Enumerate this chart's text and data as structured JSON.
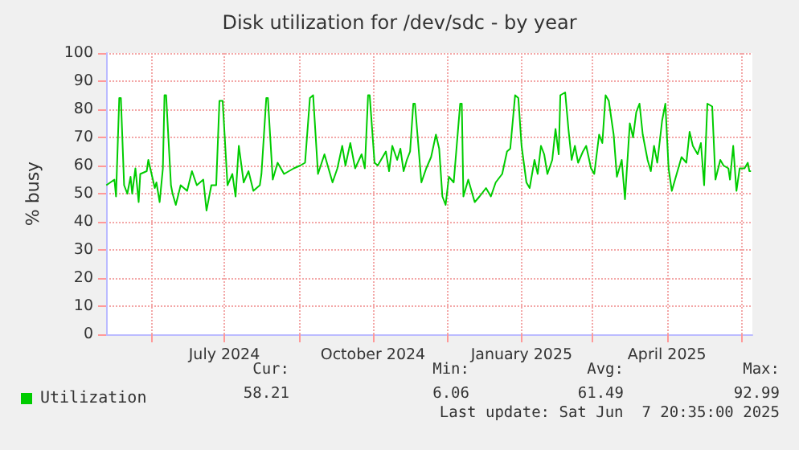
{
  "chart_data": {
    "type": "line",
    "title": "Disk utilization for /dev/sdc - by year",
    "ylabel": "% busy",
    "x": [
      "2024-05-04",
      "2024-05-09",
      "2024-05-10",
      "2024-05-12",
      "2024-05-13",
      "2024-05-15",
      "2024-05-17",
      "2024-05-19",
      "2024-05-20",
      "2024-05-22",
      "2024-05-24",
      "2024-05-25",
      "2024-05-29",
      "2024-05-30",
      "2024-06-03",
      "2024-06-04",
      "2024-06-06",
      "2024-06-08",
      "2024-06-09",
      "2024-06-10",
      "2024-06-13",
      "2024-06-14",
      "2024-06-16",
      "2024-06-19",
      "2024-06-23",
      "2024-06-26",
      "2024-06-29",
      "2024-07-03",
      "2024-07-05",
      "2024-07-08",
      "2024-07-11",
      "2024-07-13",
      "2024-07-15",
      "2024-07-18",
      "2024-07-21",
      "2024-07-23",
      "2024-07-25",
      "2024-07-28",
      "2024-07-31",
      "2024-08-03",
      "2024-08-07",
      "2024-08-08",
      "2024-08-11",
      "2024-08-12",
      "2024-08-15",
      "2024-08-18",
      "2024-08-22",
      "2024-08-25",
      "2024-08-28",
      "2024-09-01",
      "2024-09-04",
      "2024-09-07",
      "2024-09-09",
      "2024-09-12",
      "2024-09-16",
      "2024-09-21",
      "2024-09-24",
      "2024-09-27",
      "2024-09-29",
      "2024-10-02",
      "2024-10-05",
      "2024-10-09",
      "2024-10-11",
      "2024-10-13",
      "2024-10-14",
      "2024-10-17",
      "2024-10-19",
      "2024-10-24",
      "2024-10-26",
      "2024-10-28",
      "2024-10-31",
      "2024-11-02",
      "2024-11-04",
      "2024-11-06",
      "2024-11-08",
      "2024-11-10",
      "2024-11-11",
      "2024-11-13",
      "2024-11-15",
      "2024-11-18",
      "2024-11-21",
      "2024-11-24",
      "2024-11-26",
      "2024-11-28",
      "2024-11-30",
      "2024-12-02",
      "2024-12-05",
      "2024-12-09",
      "2024-12-10",
      "2024-12-11",
      "2024-12-14",
      "2024-12-16",
      "2024-12-18",
      "2024-12-21",
      "2024-12-25",
      "2024-12-28",
      "2024-12-31",
      "2025-01-04",
      "2025-01-07",
      "2025-01-09",
      "2025-01-12",
      "2025-01-14",
      "2025-01-16",
      "2025-01-19",
      "2025-01-21",
      "2025-01-24",
      "2025-01-26",
      "2025-01-28",
      "2025-01-30",
      "2025-02-01",
      "2025-02-04",
      "2025-02-06",
      "2025-02-08",
      "2025-02-09",
      "2025-02-12",
      "2025-02-14",
      "2025-02-16",
      "2025-02-18",
      "2025-02-20",
      "2025-02-23",
      "2025-02-25",
      "2025-02-28",
      "2025-03-02",
      "2025-03-05",
      "2025-03-07",
      "2025-03-09",
      "2025-03-11",
      "2025-03-14",
      "2025-03-16",
      "2025-03-19",
      "2025-03-21",
      "2025-03-24",
      "2025-03-26",
      "2025-03-28",
      "2025-03-30",
      "2025-04-01",
      "2025-04-04",
      "2025-04-06",
      "2025-04-08",
      "2025-04-10",
      "2025-04-13",
      "2025-04-15",
      "2025-04-17",
      "2025-04-19",
      "2025-04-22",
      "2025-04-25",
      "2025-04-28",
      "2025-04-30",
      "2025-05-02",
      "2025-05-05",
      "2025-05-07",
      "2025-05-09",
      "2025-05-11",
      "2025-05-14",
      "2025-05-16",
      "2025-05-19",
      "2025-05-21",
      "2025-05-24",
      "2025-05-25",
      "2025-05-27",
      "2025-05-29",
      "2025-05-31",
      "2025-06-03",
      "2025-06-05",
      "2025-06-06",
      "2025-06-07"
    ],
    "series": [
      {
        "name": "Utilization",
        "color": "#00cc00",
        "values": [
          53,
          55,
          49,
          84,
          84,
          53,
          50,
          56,
          50,
          59,
          47,
          57,
          58,
          62,
          52,
          54,
          47,
          59,
          85,
          85,
          53,
          50,
          46,
          53,
          51,
          58,
          53,
          55,
          44,
          53,
          53,
          83,
          83,
          53,
          57,
          49,
          67,
          54,
          58,
          51,
          53,
          57,
          84,
          84,
          55,
          61,
          57,
          58,
          59,
          60,
          61,
          84,
          85,
          57,
          64,
          54,
          59,
          67,
          60,
          68,
          59,
          64,
          59,
          85,
          85,
          61,
          60,
          65,
          58,
          67,
          62,
          66,
          58,
          62,
          65,
          82,
          82,
          68,
          54,
          59,
          63,
          71,
          66,
          49,
          46,
          56,
          54,
          82,
          82,
          49,
          55,
          51,
          47,
          49,
          52,
          49,
          54,
          57,
          65,
          66,
          85,
          84,
          67,
          54,
          52,
          62,
          57,
          67,
          64,
          57,
          62,
          73,
          64,
          85,
          86,
          73,
          62,
          67,
          61,
          65,
          67,
          59,
          57,
          71,
          68,
          85,
          83,
          71,
          56,
          62,
          48,
          75,
          70,
          79,
          82,
          71,
          62,
          58,
          67,
          61,
          76,
          82,
          59,
          51,
          57,
          63,
          61,
          72,
          67,
          64,
          68,
          53,
          82,
          81,
          55,
          62,
          60,
          59,
          55,
          67,
          51,
          59,
          59,
          61,
          58,
          58
        ]
      }
    ],
    "xlim": [
      "2024-05-03T20:35",
      "2025-06-07T20:35"
    ],
    "xticks": [
      {
        "value": "2024-06-01",
        "label": null
      },
      {
        "value": "2024-07-16",
        "label": "July 2024"
      },
      {
        "value": "2024-09-01",
        "label": null
      },
      {
        "value": "2024-10-16",
        "label": "October 2024"
      },
      {
        "value": "2024-12-01",
        "label": null
      },
      {
        "value": "2025-01-16",
        "label": "January 2025"
      },
      {
        "value": "2025-03-01",
        "label": null
      },
      {
        "value": "2025-04-16",
        "label": "April 2025"
      },
      {
        "value": "2025-06-01",
        "label": null
      }
    ],
    "ylim": [
      0,
      100
    ],
    "yticks": [
      0,
      10,
      20,
      30,
      40,
      50,
      60,
      70,
      80,
      90,
      100
    ],
    "grid": true,
    "legend": "bottom left",
    "marker": "none",
    "line_style": "solid",
    "annotations": [
      "Cur:",
      "Min:",
      "Avg:",
      "Max:",
      "58.21",
      "6.06",
      "61.49",
      "92.99",
      "Last update: Sat Jun  7 20:35:00 2025"
    ]
  }
}
